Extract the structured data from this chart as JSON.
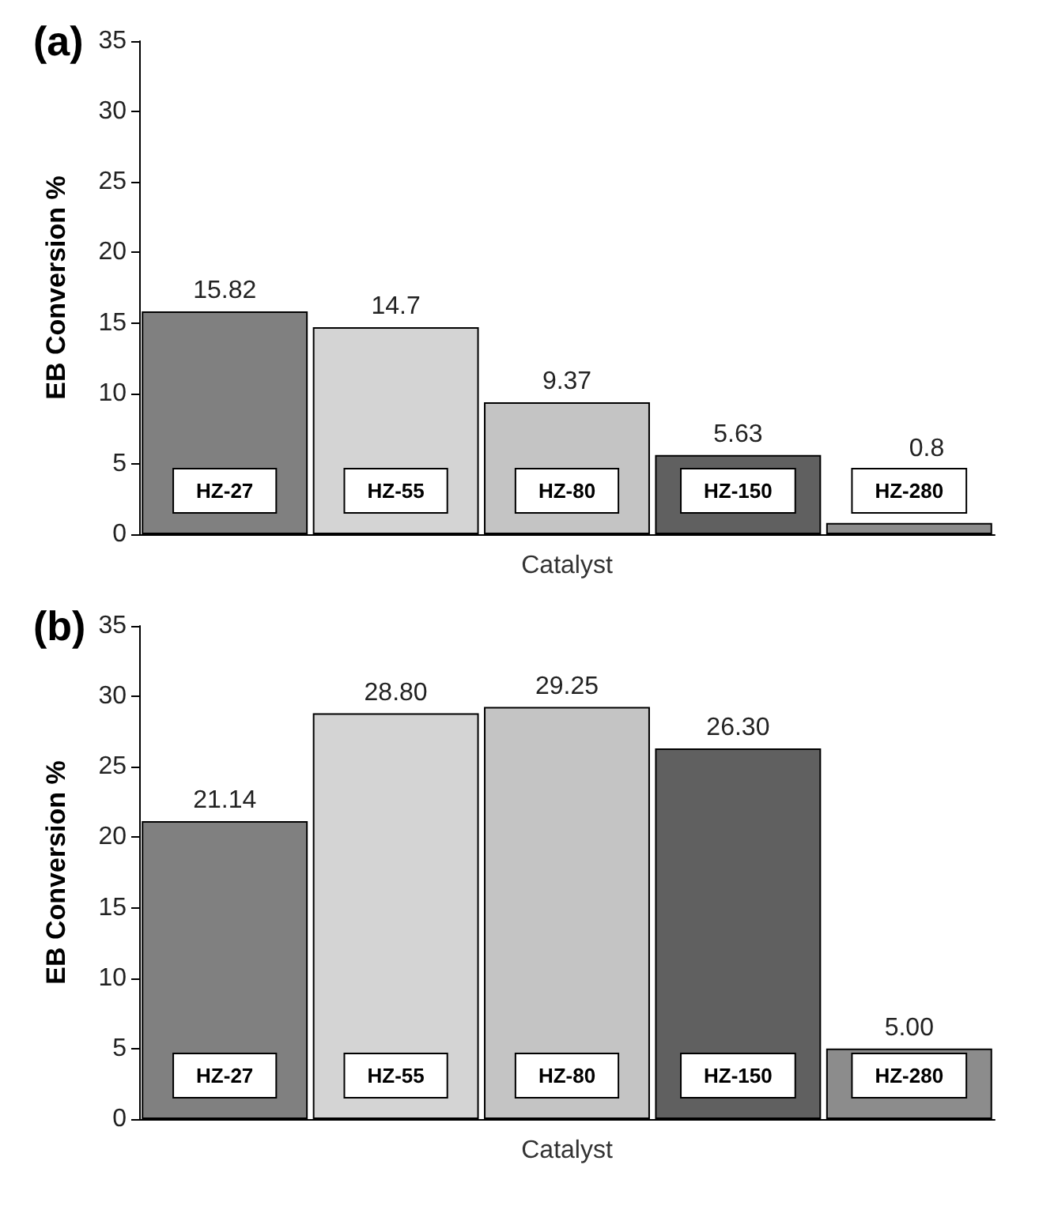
{
  "chart_data": [
    {
      "type": "bar",
      "title": "(a)",
      "xlabel": "Catalyst",
      "ylabel": "EB Conversion %",
      "categories": [
        "HZ-27",
        "HZ-55",
        "HZ-80",
        "HZ-150",
        "HZ-280"
      ],
      "values": [
        15.82,
        14.7,
        9.37,
        5.63,
        0.8
      ],
      "colors": [
        "#808080",
        "#d4d4d4",
        "#c4c4c4",
        "#606060",
        "#8c8c8c"
      ],
      "data_labels": true,
      "ylim": [
        0,
        35
      ],
      "yticks": [
        0,
        5,
        10,
        15,
        20,
        25,
        30,
        35
      ],
      "grid": false
    },
    {
      "type": "bar",
      "title": "(b)",
      "xlabel": "Catalyst",
      "ylabel": "EB Conversion %",
      "categories": [
        "HZ-27",
        "HZ-55",
        "HZ-80",
        "HZ-150",
        "HZ-280"
      ],
      "values": [
        21.14,
        28.8,
        29.25,
        26.3,
        5.0
      ],
      "value_labels": [
        "21.14",
        "28.80",
        "29.25",
        "26.30",
        "5.00"
      ],
      "colors": [
        "#808080",
        "#d4d4d4",
        "#c4c4c4",
        "#606060",
        "#8c8c8c"
      ],
      "ylim": [
        0,
        35
      ],
      "yticks": [
        0,
        5,
        10,
        15,
        20,
        25,
        30,
        35
      ],
      "grid": false
    }
  ]
}
